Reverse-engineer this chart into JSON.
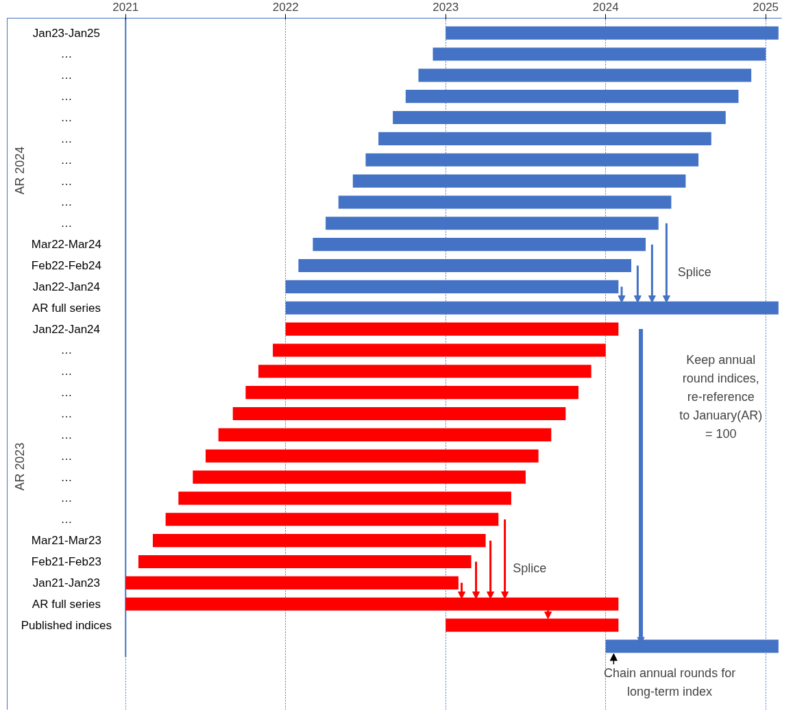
{
  "chart_data": {
    "type": "bar",
    "orientation": "horizontal",
    "categories": [
      "Jan23-Jan25",
      "…",
      "…",
      "…",
      "…",
      "…",
      "…",
      "…",
      "…",
      "…",
      "Mar22-Mar24",
      "Feb22-Feb24",
      "Jan22-Jan24",
      "AR full series",
      "Jan22-Jan24",
      "…",
      "…",
      "…",
      "…",
      "…",
      "…",
      "…",
      "…",
      "…",
      "Mar21-Mar23",
      "Feb21-Feb23",
      "Jan21-Jan23",
      "AR full series",
      "Published indices",
      null
    ],
    "series": [
      {
        "color": "#4472c4",
        "base": [
          2023.0,
          2022.92,
          2022.83,
          2022.75,
          2022.67,
          2022.58,
          2022.5,
          2022.42,
          2022.33,
          2022.25,
          2022.17,
          2022.08,
          2022.0,
          2022.0,
          null,
          null,
          null,
          null,
          null,
          null,
          null,
          null,
          null,
          null,
          null,
          null,
          null,
          null,
          null,
          2024.0
        ],
        "values": [
          2.08,
          2.08,
          2.08,
          2.08,
          2.08,
          2.08,
          2.08,
          2.08,
          2.08,
          2.08,
          2.08,
          2.08,
          2.08,
          3.08,
          null,
          null,
          null,
          null,
          null,
          null,
          null,
          null,
          null,
          null,
          null,
          null,
          null,
          null,
          null,
          1.08
        ]
      },
      {
        "color": "#ff0000",
        "base": [
          null,
          null,
          null,
          null,
          null,
          null,
          null,
          null,
          null,
          null,
          null,
          null,
          null,
          null,
          2022.0,
          2021.92,
          2021.83,
          2021.75,
          2021.67,
          2021.58,
          2021.5,
          2021.42,
          2021.33,
          2021.25,
          2021.17,
          2021.08,
          2021.0,
          2021.0,
          2023.0,
          null
        ],
        "values": [
          null,
          null,
          null,
          null,
          null,
          null,
          null,
          null,
          null,
          null,
          null,
          null,
          null,
          null,
          2.08,
          2.08,
          2.08,
          2.08,
          2.08,
          2.08,
          2.08,
          2.08,
          2.08,
          2.08,
          2.08,
          2.08,
          2.08,
          3.08,
          1.08,
          null
        ]
      }
    ],
    "xlim": [
      2020.26,
      2025.1
    ],
    "xticks": [
      2021,
      2022,
      2023,
      2024,
      2025
    ],
    "grid": "x",
    "annotations": [
      "AR 2024",
      "AR 2023",
      "Splice",
      "Splice",
      "Keep annual\nround indices,\nre-reference\nto January(AR)\n= 100",
      "Chain annual rounds for\nlong-term index"
    ]
  }
}
